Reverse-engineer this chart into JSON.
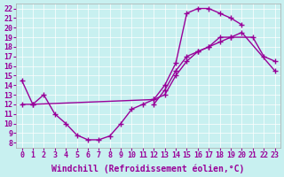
{
  "xlabel": "Windchill (Refroidissement éolien,°C)",
  "bg_color": "#c8f0f0",
  "line_color": "#990099",
  "xlim": [
    -0.5,
    23.5
  ],
  "ylim": [
    7.5,
    22.5
  ],
  "xticks": [
    0,
    1,
    2,
    3,
    4,
    5,
    6,
    7,
    8,
    9,
    10,
    11,
    12,
    13,
    14,
    15,
    16,
    17,
    18,
    19,
    20,
    21,
    22,
    23
  ],
  "yticks": [
    8,
    9,
    10,
    11,
    12,
    13,
    14,
    15,
    16,
    17,
    18,
    19,
    20,
    21,
    22
  ],
  "curves": [
    {
      "x": [
        0,
        1,
        2,
        3,
        4,
        5,
        6,
        7,
        8,
        9,
        10,
        11,
        12,
        13,
        14,
        15,
        16,
        17,
        18,
        19,
        20
      ],
      "y": [
        14.5,
        12.0,
        13.0,
        11.0,
        10.0,
        8.8,
        8.3,
        8.3,
        8.7,
        10.0,
        11.5,
        12.0,
        12.5,
        14.0,
        16.3,
        21.5,
        22.0,
        22.0,
        21.5,
        21.0,
        20.3
      ]
    },
    {
      "x": [
        0,
        1,
        12,
        13,
        14,
        15,
        16,
        17,
        18,
        19,
        20,
        23
      ],
      "y": [
        12.0,
        12.0,
        12.5,
        13.0,
        15.0,
        16.5,
        17.5,
        18.0,
        18.5,
        19.0,
        19.5,
        15.5
      ]
    },
    {
      "x": [
        12,
        13,
        14,
        15,
        16,
        17,
        18,
        19,
        21,
        22,
        23
      ],
      "y": [
        12.0,
        13.5,
        15.5,
        17.0,
        17.5,
        18.0,
        19.0,
        19.0,
        19.0,
        17.0,
        16.5
      ]
    }
  ],
  "marker": "+",
  "markersize": 5,
  "linewidth": 1.0,
  "fontsize_label": 7,
  "fontsize_tick": 6
}
